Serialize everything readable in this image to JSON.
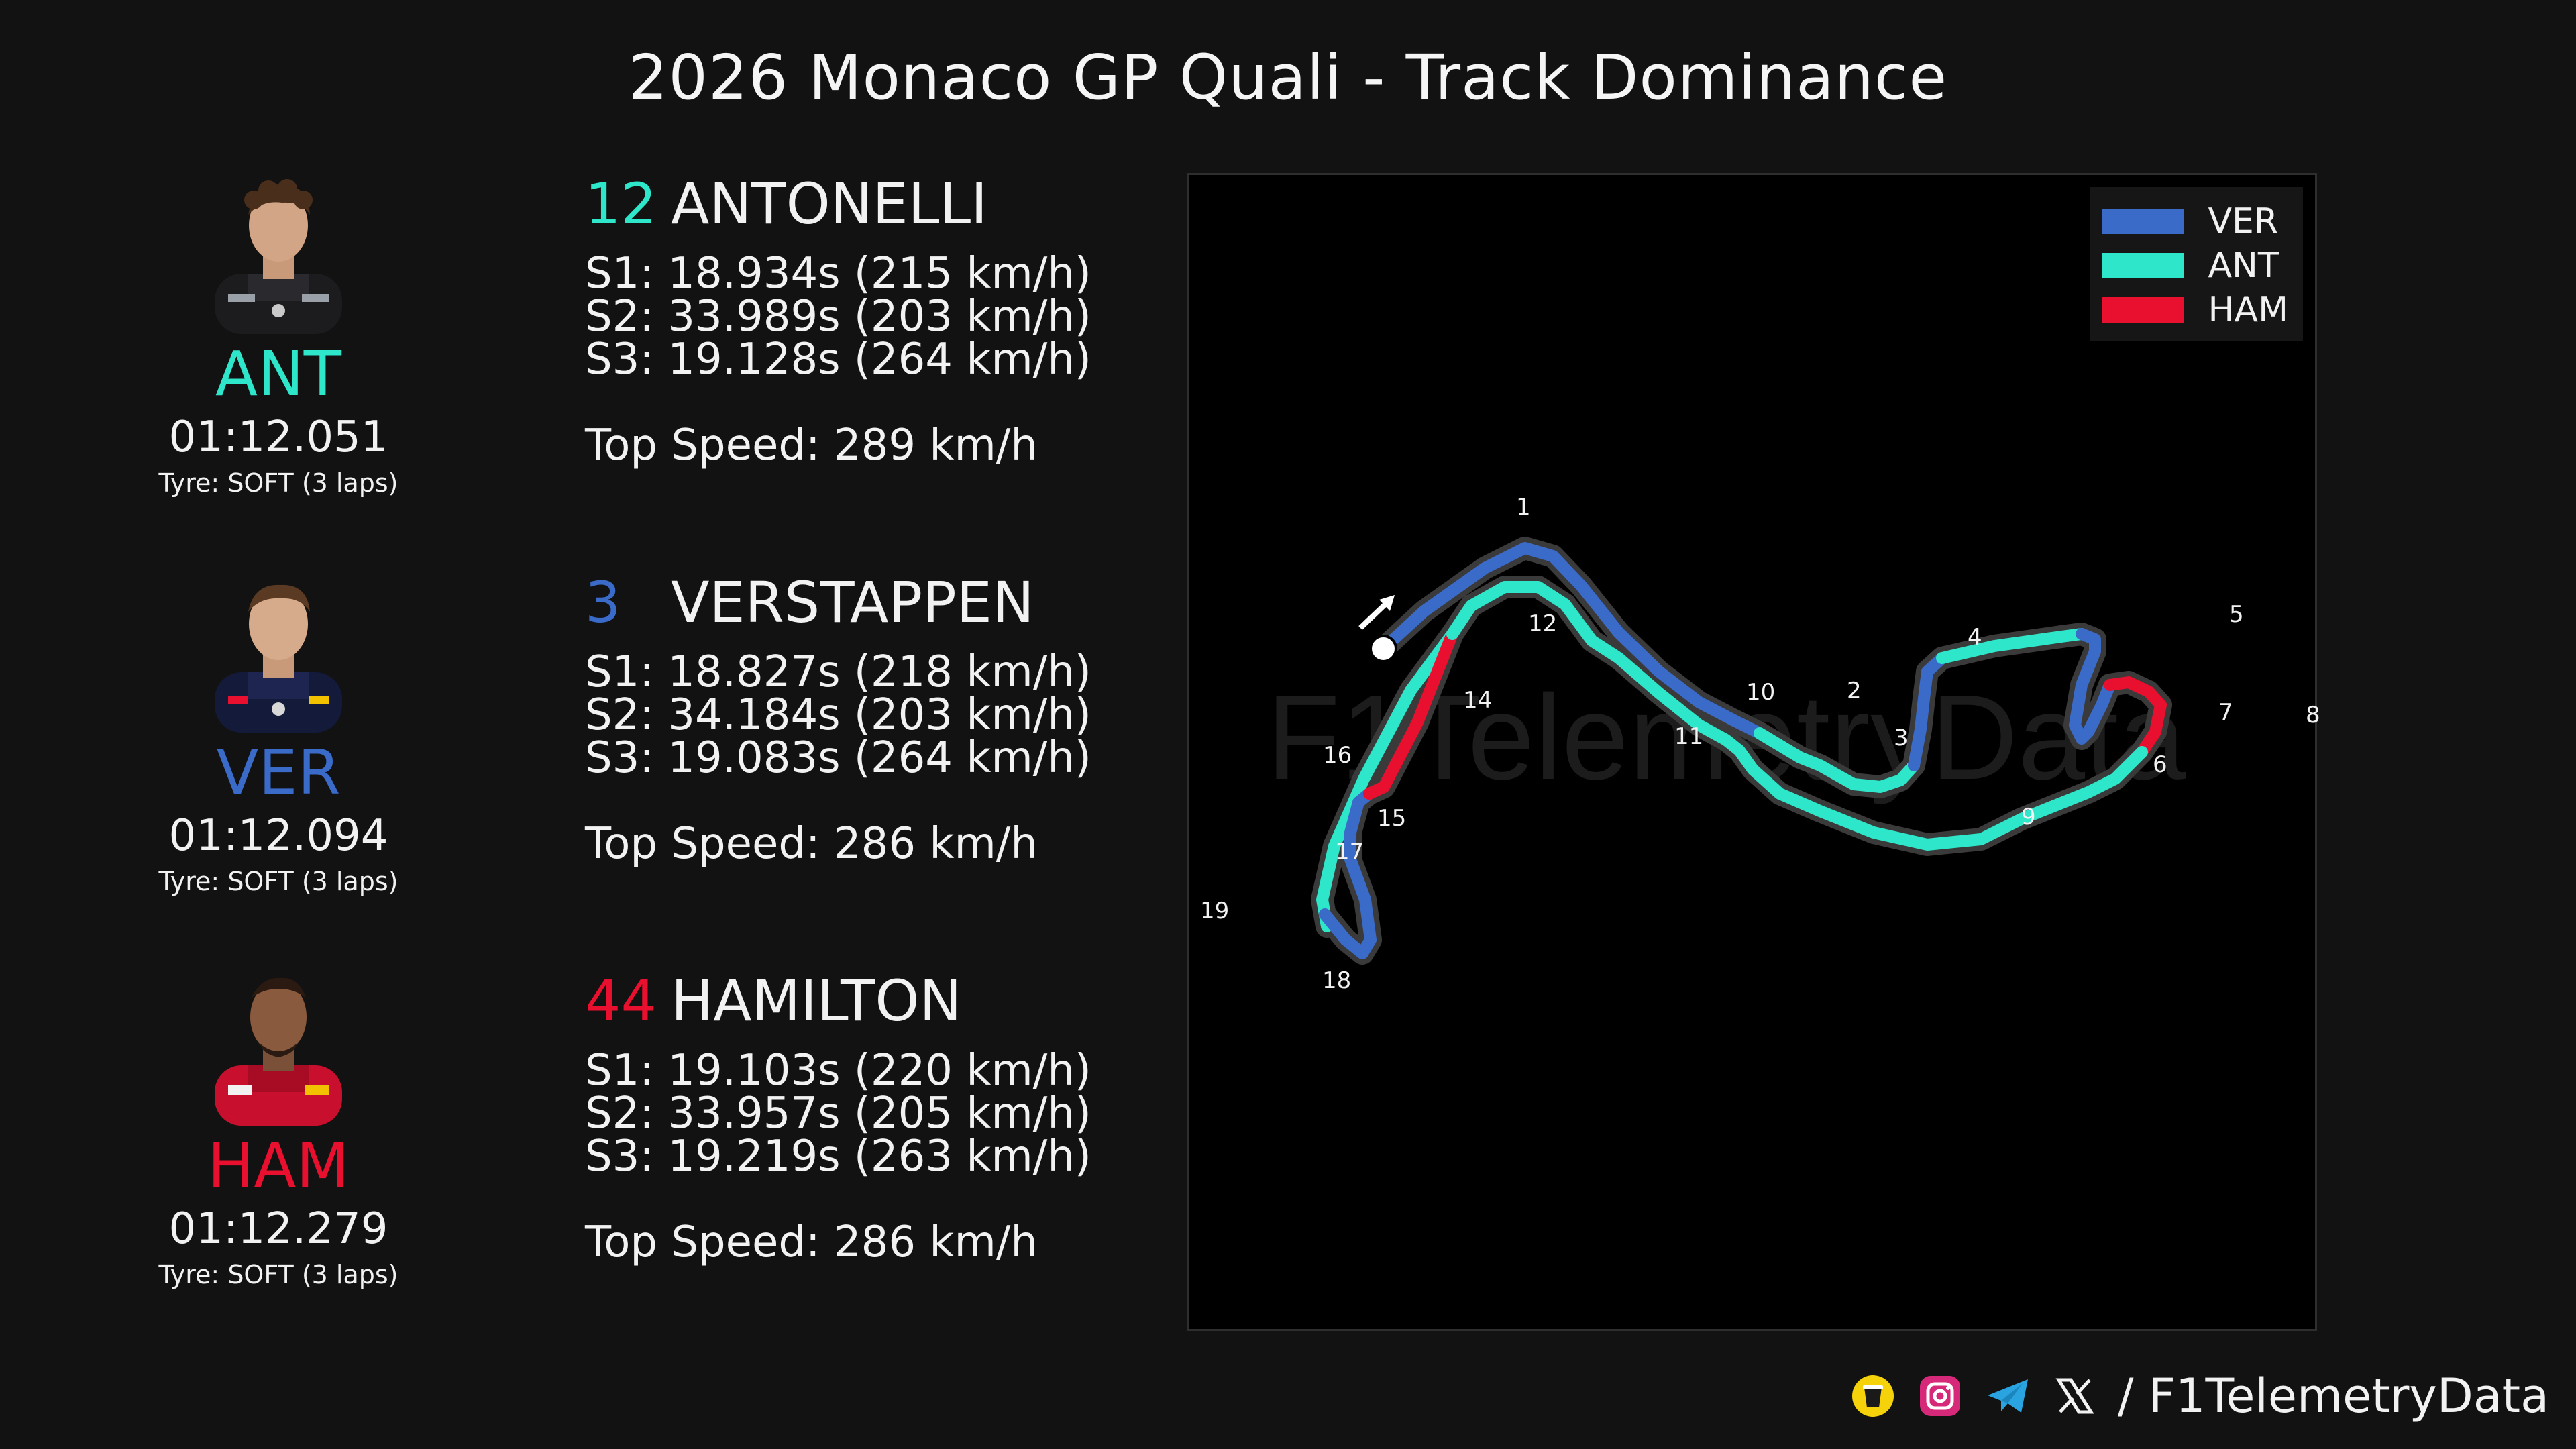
{
  "title": "2026 Monaco GP Quali - Track Dominance",
  "drivers": [
    {
      "code": "ANT",
      "color": "#2ee6c9",
      "number": "12",
      "name": "ANTONELLI",
      "laptime": "01:12.051",
      "tyre": "Tyre: SOFT (3 laps)",
      "s1": "S1:  18.934s  (215 km/h)",
      "s2": "S2:  33.989s  (203 km/h)",
      "s3": "S3:  19.128s  (264 km/h)",
      "top_speed": "Top Speed: 289 km/h"
    },
    {
      "code": "VER",
      "color": "#3a6bc9",
      "number": "3",
      "name": "VERSTAPPEN",
      "laptime": "01:12.094",
      "tyre": "Tyre: SOFT (3 laps)",
      "s1": "S1:  18.827s  (218 km/h)",
      "s2": "S2:  34.184s  (203 km/h)",
      "s3": "S3:  19.083s  (264 km/h)",
      "top_speed": "Top Speed: 286 km/h"
    },
    {
      "code": "HAM",
      "color": "#e8102e",
      "number": "44",
      "name": "HAMILTON",
      "laptime": "01:12.279",
      "tyre": "Tyre: SOFT (3 laps)",
      "s1": "S1:  19.103s  (220 km/h)",
      "s2": "S2:  33.957s  (205 km/h)",
      "s3": "S3:  19.219s  (263 km/h)",
      "top_speed": "Top Speed: 286 km/h"
    }
  ],
  "chart_data": {
    "type": "track-map",
    "legend": [
      {
        "label": "VER",
        "color": "#3a6bc9"
      },
      {
        "label": "ANT",
        "color": "#2ee6c9"
      },
      {
        "label": "HAM",
        "color": "#e8102e"
      }
    ],
    "corners": [
      "1",
      "2",
      "3",
      "4",
      "5",
      "6",
      "7",
      "8",
      "9",
      "10",
      "11",
      "12",
      "14",
      "15",
      "16",
      "17",
      "18",
      "19"
    ],
    "watermark": "F1TelemetryData"
  },
  "footer": {
    "handle": "/ F1TelemetryData"
  },
  "icons": [
    "buymeacoffee-icon",
    "instagram-icon",
    "telegram-icon",
    "x-icon",
    "start-arrow-icon"
  ]
}
